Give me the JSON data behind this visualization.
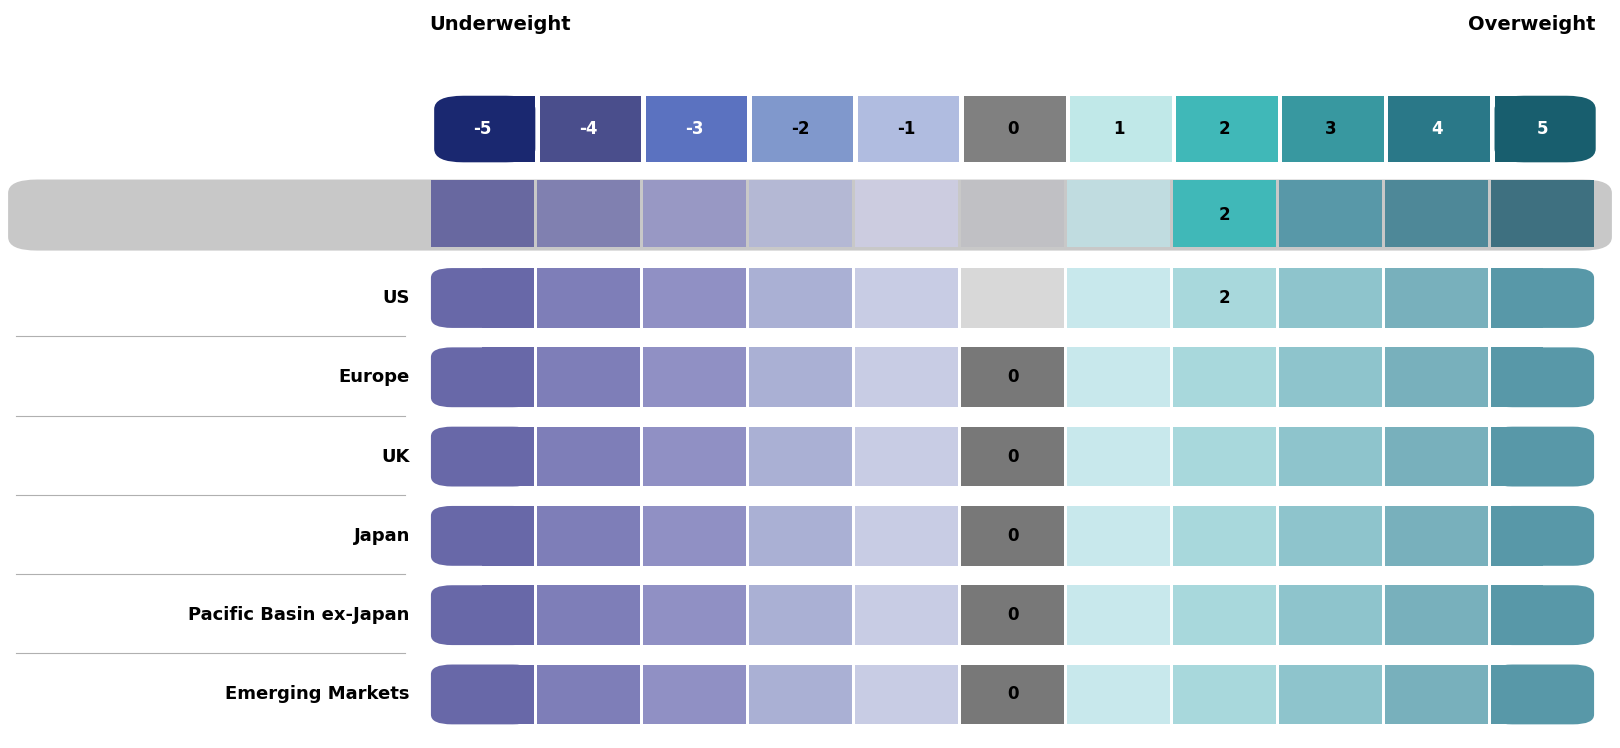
{
  "title_left": "Underweight",
  "title_right": "Overweight",
  "scale_values": [
    -5,
    -4,
    -3,
    -2,
    -1,
    0,
    1,
    2,
    3,
    4,
    5
  ],
  "scale_colors": [
    "#1a2870",
    "#4a4e8c",
    "#5b72c0",
    "#8098cc",
    "#b0bce0",
    "#808080",
    "#c0e8e8",
    "#40b8b8",
    "#3898a0",
    "#2a7888",
    "#185e6e"
  ],
  "scale_text_colors": [
    "white",
    "white",
    "white",
    "black",
    "black",
    "black",
    "black",
    "black",
    "black",
    "white",
    "white"
  ],
  "rows": [
    {
      "label": "",
      "value": 2,
      "is_header": true
    },
    {
      "label": "US",
      "value": 2,
      "is_header": false
    },
    {
      "label": "Europe",
      "value": 0,
      "is_header": false
    },
    {
      "label": "UK",
      "value": 0,
      "is_header": false
    },
    {
      "label": "Japan",
      "value": 0,
      "is_header": false
    },
    {
      "label": "Pacific Basin ex-Japan",
      "value": 0,
      "is_header": false
    },
    {
      "label": "Emerging Markets",
      "value": 0,
      "is_header": false
    }
  ],
  "header_row_colors": [
    "#6868a0",
    "#8080b0",
    "#9898c4",
    "#b4b8d4",
    "#cccce0",
    "#c0c0c4",
    "#c0dce0",
    "#40b8b8",
    "#5898a8",
    "#4e8898",
    "#3e7080"
  ],
  "data_row_colors_neg": [
    "#6868a8",
    "#7e7eb8",
    "#9090c4",
    "#aab0d4",
    "#c8cce4"
  ],
  "data_row_colors_zero_neutral": "#c4c4c8",
  "data_row_colors_zero_highlighted": "#787878",
  "data_row_colors_pos": [
    "#c8e8ec",
    "#a8d8dc",
    "#8ec4cc",
    "#78b0bc",
    "#5898a8"
  ],
  "us_row_zero_color": "#d8d8d8",
  "background_color": "#ffffff",
  "header_bg": "#c8c8c8",
  "separator_color": "#b0b0b0",
  "figsize": [
    16.2,
    7.48
  ],
  "dpi": 100
}
